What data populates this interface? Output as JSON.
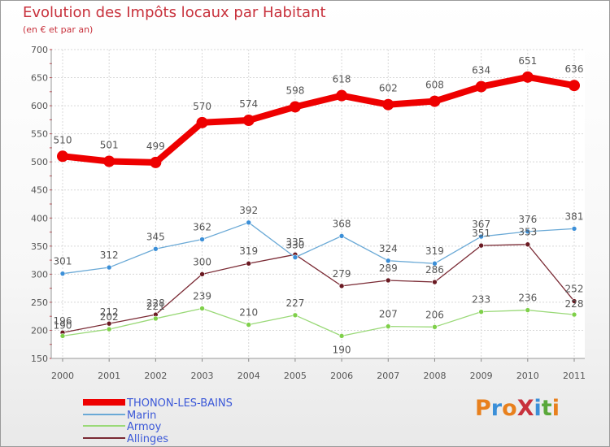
{
  "header": {
    "title": "Evolution des Impôts locaux par Habitant",
    "subtitle": "(en € et par an)"
  },
  "logo": {
    "text": "ProXiti",
    "colors": [
      "#e8801d",
      "#3b8fd8",
      "#e8801d",
      "#c8313c",
      "#3b8fd8",
      "#5aa83a",
      "#e8801d"
    ]
  },
  "chart_data": {
    "type": "line",
    "title": "Evolution des Impôts locaux par Habitant",
    "subtitle": "(en € et par an)",
    "xlabel": "",
    "ylabel": "",
    "categories": [
      "2000",
      "2001",
      "2002",
      "2003",
      "2004",
      "2005",
      "2006",
      "2007",
      "2008",
      "2009",
      "2010",
      "2011"
    ],
    "ylim": [
      150,
      700
    ],
    "yticks": [
      150,
      200,
      250,
      300,
      350,
      400,
      450,
      500,
      550,
      600,
      650,
      700
    ],
    "grid": true,
    "legend_position": "bottom-left",
    "series": [
      {
        "name": "THONON-LES-BAINS",
        "color": "#ee0000",
        "values": [
          510,
          501,
          499,
          570,
          574,
          598,
          618,
          602,
          608,
          634,
          651,
          636
        ]
      },
      {
        "name": "Marin",
        "color": "#6aa9d6",
        "values": [
          301,
          312,
          345,
          362,
          392,
          330,
          368,
          324,
          319,
          367,
          376,
          381
        ]
      },
      {
        "name": "Armoy",
        "color": "#9ad978",
        "values": [
          190,
          202,
          221,
          239,
          210,
          227,
          190,
          207,
          206,
          233,
          236,
          228
        ]
      },
      {
        "name": "Allinges",
        "color": "#7a2a34",
        "values": [
          196,
          212,
          228,
          300,
          319,
          335,
          279,
          289,
          286,
          351,
          353,
          252
        ]
      }
    ]
  }
}
